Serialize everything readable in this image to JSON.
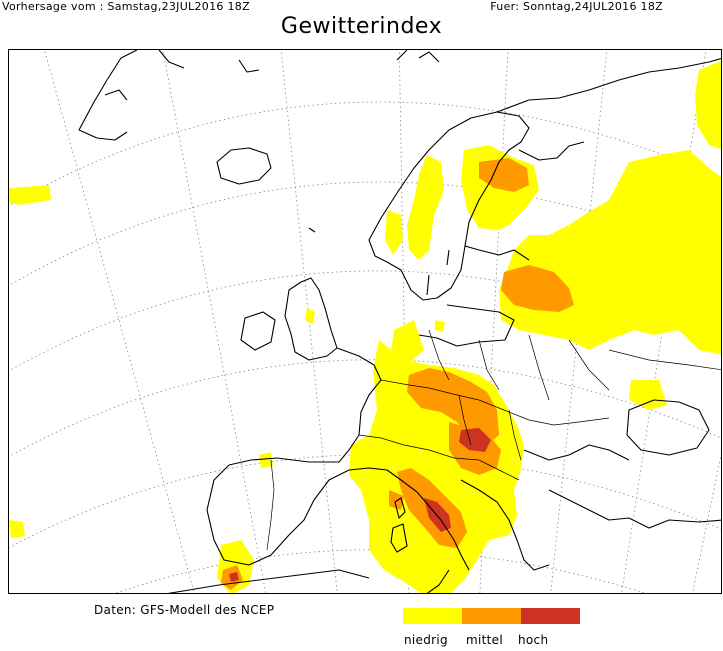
{
  "header": {
    "issued": "Vorhersage vom : Samstag,23JUL2016 18Z",
    "valid": "Fuer: Sonntag,24JUL2016 18Z"
  },
  "title": "Gewitterindex",
  "footer": {
    "source": "Daten: GFS-Modell des NCEP"
  },
  "legend": {
    "items": [
      {
        "label": "niedrig",
        "color": "#ffff00"
      },
      {
        "label": "mittel",
        "color": "#ff9900"
      },
      {
        "label": "hoch",
        "color": "#cc3322"
      }
    ]
  },
  "colors": {
    "coastline": "#000000",
    "grid": "#888888",
    "background": "#ffffff"
  }
}
